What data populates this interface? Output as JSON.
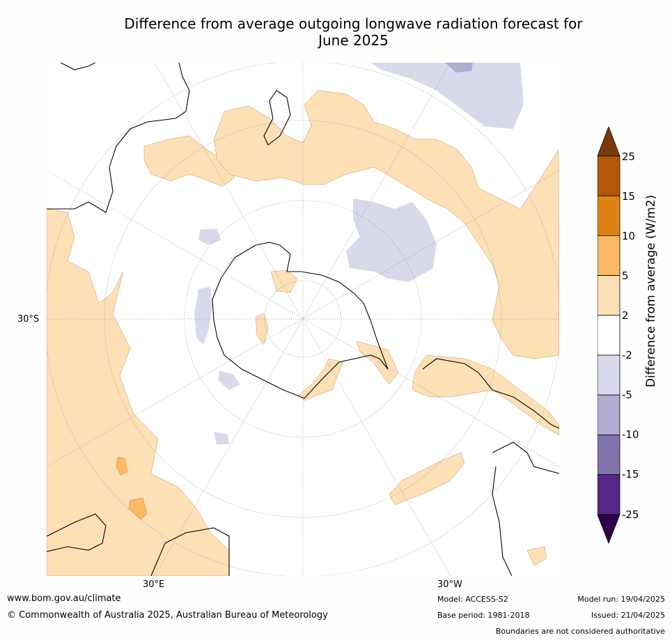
{
  "title_line1": "Difference from average outgoing longwave radiation forecast for",
  "title_line2": "June 2025",
  "map_labels": {
    "lat_30s": "30°S",
    "lon_30e": "30°E",
    "lon_30w": "30°W"
  },
  "colorbar": {
    "label": "Difference from average (W/m2)",
    "ticks": [
      "25",
      "15",
      "10",
      "5",
      "2",
      "-2",
      "-5",
      "-10",
      "-15",
      "-25"
    ],
    "colors": [
      "#7a3a08",
      "#b35808",
      "#e08214",
      "#fdb863",
      "#fde0b6",
      "#ffffff",
      "#d8daeb",
      "#b2abd2",
      "#8073ac",
      "#542788",
      "#2d004b"
    ]
  },
  "footer": {
    "website": "www.bom.gov.au/climate",
    "copyright": "© Commonwealth of Australia 2025, Australian Bureau of Meteorology",
    "model": "Model: ACCESS-S2",
    "base_period": "Base period: 1981-2018",
    "model_run": "Model run: 19/04/2025",
    "issued": "Issued: 21/04/2025",
    "disclaimer": "Boundaries are not considered authoritative"
  }
}
